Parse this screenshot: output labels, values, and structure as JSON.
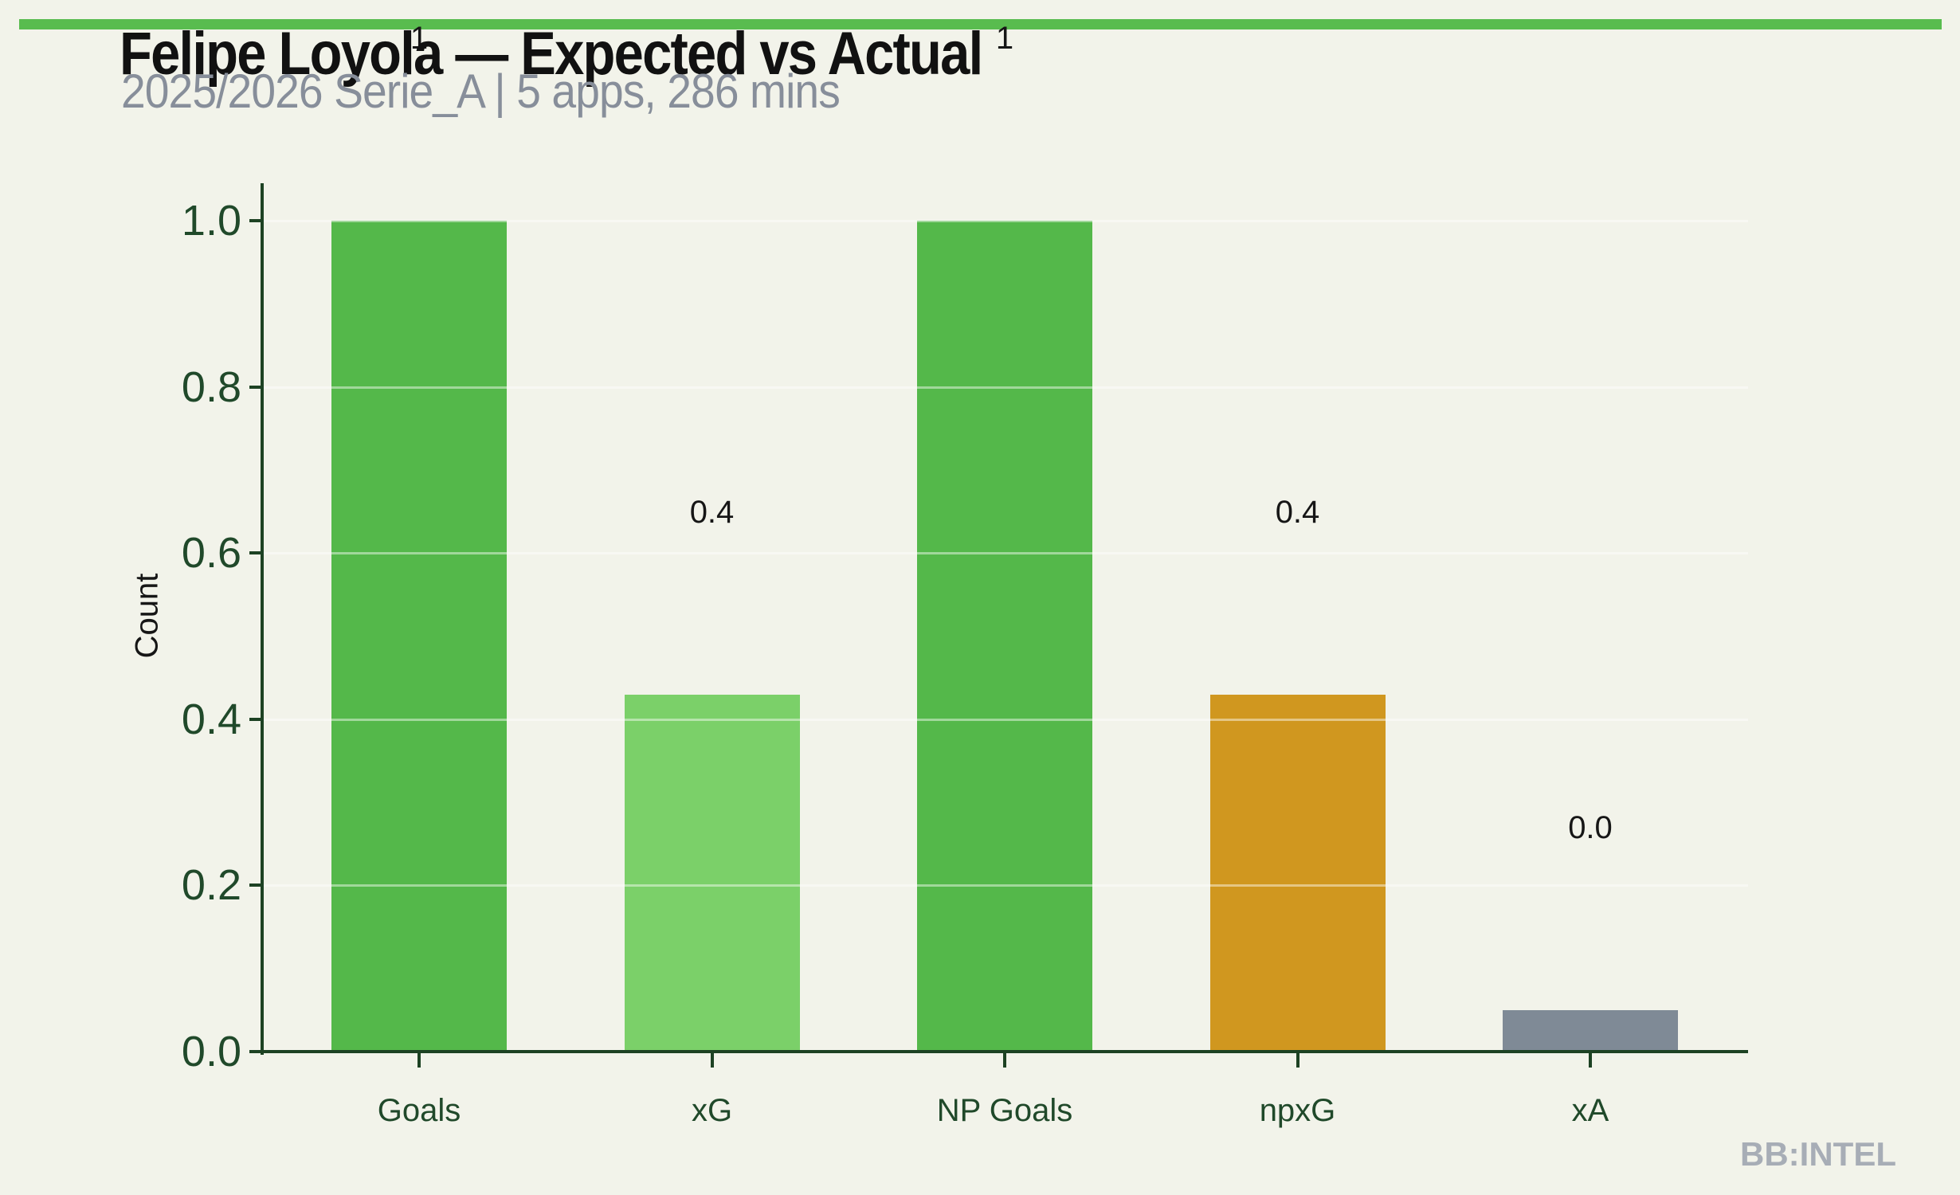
{
  "page": {
    "background_color": "#f2f3ea",
    "accent_strip_color": "#59bc4f"
  },
  "header": {
    "title": "Felipe Loyola — Expected vs Actual",
    "subtitle": "2025/2026 Serie_A | 5 apps, 286 mins",
    "title_color": "#111111",
    "subtitle_color": "#878e9a"
  },
  "watermark": {
    "text": "BB:INTEL",
    "color": "#a7adb6"
  },
  "chart_data": {
    "type": "bar",
    "title": "Felipe Loyola — Expected vs Actual",
    "subtitle": "2025/2026 Serie_A | 5 apps, 286 mins",
    "categories": [
      "Goals",
      "xG",
      "NP Goals",
      "npxG",
      "xA"
    ],
    "values": [
      1.0,
      0.43,
      1.0,
      0.43,
      0.05
    ],
    "value_labels": [
      "1",
      "0.4",
      "1",
      "0.4",
      "0.0"
    ],
    "bar_colors": [
      "#54b84a",
      "#7bd069",
      "#54b84a",
      "#d0971f",
      "#7f8a96"
    ],
    "xlabel": "",
    "ylabel": "Count",
    "ylim": [
      0,
      1.0
    ],
    "yticks": [
      "0.0",
      "0.2",
      "0.4",
      "0.6",
      "0.8",
      "1.0"
    ],
    "grid": "horizontal",
    "gridline_color": "rgba(255,255,255,0.45)",
    "axis_color": "#1d4223",
    "tick_label_color": "#20492a",
    "value_label_color": "#161616",
    "legend": "none"
  }
}
